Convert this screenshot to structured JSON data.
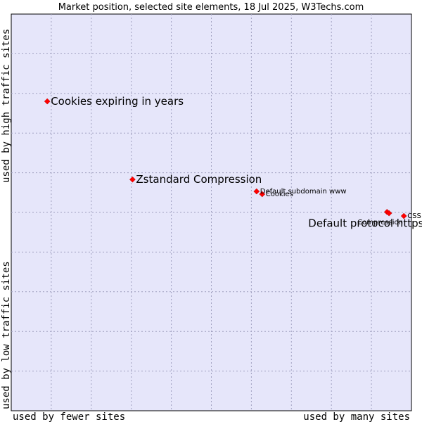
{
  "chart_data": {
    "type": "scatter",
    "title": "Market position, selected site elements, 18 Jul 2025, W3Techs.com",
    "xlabel_left": "used by fewer sites",
    "xlabel_right": "used by many sites",
    "ylabel_bottom": "used by low traffic sites",
    "ylabel_top": "used by high traffic sites",
    "xlim": [
      0,
      100
    ],
    "ylim": [
      0,
      100
    ],
    "grid": true,
    "colors": {
      "plot_bg": "#e6e6fa",
      "frame": "#000000",
      "point": "#ff0000",
      "point_edge": "#b00000"
    },
    "points": [
      {
        "label": "Cookies expiring in years",
        "x": 9.0,
        "y": 78.0,
        "size": "large"
      },
      {
        "label": "Zstandard Compression",
        "x": 30.3,
        "y": 58.3,
        "size": "large"
      },
      {
        "label": "Default subdomain www",
        "x": 61.3,
        "y": 55.3,
        "size": "small"
      },
      {
        "label": "Cookies",
        "x": 62.7,
        "y": 54.6,
        "size": "small"
      },
      {
        "label": "Default protocol https",
        "x": 93.9,
        "y": 50.1,
        "size": "large"
      },
      {
        "label": "Compression",
        "x": 94.4,
        "y": 49.8,
        "size": "small"
      },
      {
        "label": "CSS",
        "x": 98.1,
        "y": 49.1,
        "size": "small"
      }
    ]
  }
}
